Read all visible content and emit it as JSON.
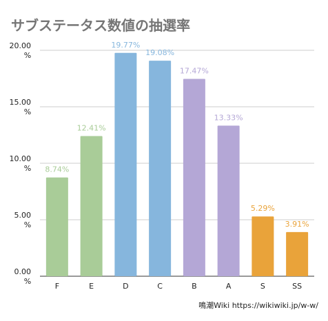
{
  "chart_data": {
    "type": "bar",
    "title": "サブステータス数値の抽選率",
    "categories": [
      "F",
      "E",
      "D",
      "C",
      "B",
      "A",
      "S",
      "SS"
    ],
    "values": [
      8.74,
      12.41,
      19.77,
      19.08,
      17.47,
      13.33,
      5.29,
      3.91
    ],
    "value_labels": [
      "8.74%",
      "12.41%",
      "19.77%",
      "19.08%",
      "17.47%",
      "13.33%",
      "5.29%",
      "3.91%"
    ],
    "bar_colors": [
      "#a9cc98",
      "#a9cc98",
      "#86b6dd",
      "#86b6dd",
      "#b4a7d6",
      "#b4a7d6",
      "#e9a33a",
      "#e9a33a"
    ],
    "yticks": [
      {
        "value": 0,
        "label": "0.00",
        "unit": "%"
      },
      {
        "value": 5,
        "label": "5.00",
        "unit": "%"
      },
      {
        "value": 10,
        "label": "10.00",
        "unit": "%"
      },
      {
        "value": 15,
        "label": "15.00",
        "unit": "%"
      },
      {
        "value": 20,
        "label": "20.00",
        "unit": "%"
      }
    ],
    "ylim": [
      0,
      20
    ],
    "grid": true,
    "xlabel": "",
    "ylabel": ""
  },
  "source": "鳴潮Wiki https://wikiwiki.jp/w-w/"
}
